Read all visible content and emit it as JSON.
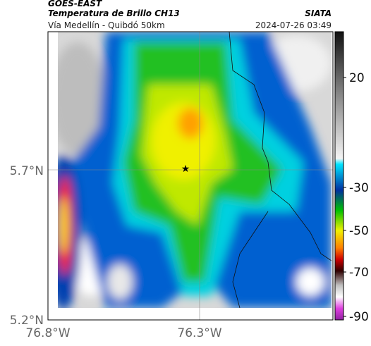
{
  "header": {
    "source": "GOES-EAST",
    "title": "Temperatura de Brillo CH13",
    "brand": "SIATA",
    "subtitle": "Vía Medellín - Quibdó 50km",
    "timestamp": "2024-07-26 03:49"
  },
  "axes": {
    "lat_labels": [
      "5.7°N",
      "5.2°N"
    ],
    "lon_labels": [
      "76.8°W",
      "76.3°W"
    ]
  },
  "colorbar": {
    "ticks": [
      20,
      -30,
      -50,
      -70,
      -90
    ]
  }
}
